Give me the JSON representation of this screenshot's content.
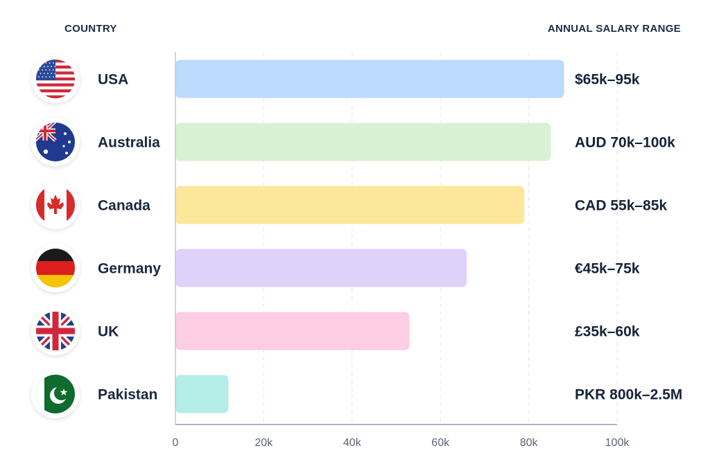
{
  "header": {
    "country": "COUNTRY",
    "range": "ANNUAL SALARY RANGE"
  },
  "chart_data": {
    "type": "bar",
    "orientation": "horizontal",
    "categories": [
      "USA",
      "Australia",
      "Canada",
      "Germany",
      "UK",
      "Pakistan"
    ],
    "values": [
      88,
      85,
      79,
      66,
      53,
      12
    ],
    "range_labels": [
      "$65k–95k",
      "AUD 70k–100k",
      "CAD 55k–85k",
      "€45k–75k",
      "£35k–60k",
      "PKR 800k–2.5M"
    ],
    "bar_colors": [
      "#bcdafc",
      "#d8f1d2",
      "#fce79a",
      "#ded2fb",
      "#fccde4",
      "#b4ece7"
    ],
    "flag_icons": [
      "usa-flag-icon",
      "australia-flag-icon",
      "canada-flag-icon",
      "germany-flag-icon",
      "uk-flag-icon",
      "pakistan-flag-icon"
    ],
    "x_ticks": [
      "0",
      "20k",
      "40k",
      "60k",
      "80k",
      "100k"
    ],
    "xlim": [
      0,
      100
    ],
    "grid": "vertical dashed",
    "legend": "none"
  }
}
